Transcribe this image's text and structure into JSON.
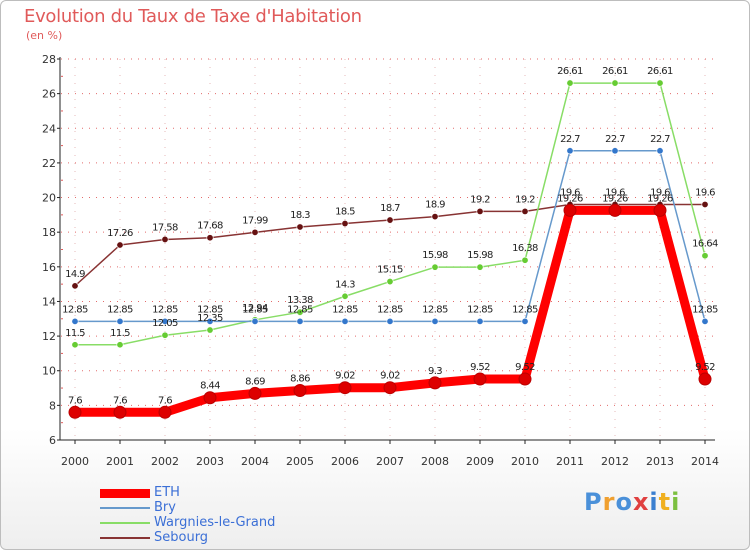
{
  "title": "Evolution du Taux de Taxe d'Habitation",
  "unit": "(en %)",
  "logo": "Proxiti",
  "colors": {
    "title": "#e05a5a",
    "axis": "#222222",
    "grid_dots": "#e05a5a",
    "legend_text": "#3b6fd6"
  },
  "chart_data": {
    "type": "line",
    "title": "Evolution du Taux de Taxe d'Habitation",
    "ylabel": "(en %)",
    "xlabel": "",
    "ylim": [
      6,
      28
    ],
    "yticks": [
      6,
      8,
      10,
      12,
      14,
      16,
      18,
      20,
      22,
      24,
      26,
      28
    ],
    "x": [
      "2000",
      "2001",
      "2002",
      "2003",
      "2004",
      "2005",
      "2006",
      "2007",
      "2008",
      "2009",
      "2010",
      "2011",
      "2012",
      "2013",
      "2014"
    ],
    "legend_position": "bottom-left",
    "series": [
      {
        "name": "ETH",
        "color": "#ff0000",
        "point_color": "#dd0000",
        "line_width": "heavy",
        "values": [
          7.6,
          7.6,
          7.6,
          8.44,
          8.69,
          8.86,
          9.02,
          9.02,
          9.3,
          9.52,
          9.52,
          19.26,
          19.26,
          19.26,
          9.52
        ],
        "labels": [
          "7.6",
          "7.6",
          "7.6",
          "8.44",
          "8.69",
          "8.86",
          "9.02",
          "9.02",
          "9.3",
          "9.52",
          "9.52",
          "19.26",
          "19.26",
          "19.26",
          "9.52"
        ]
      },
      {
        "name": "Bry",
        "color": "#6699cc",
        "point_color": "#3377cc",
        "line_width": "thin",
        "values": [
          12.85,
          12.85,
          12.85,
          12.85,
          12.85,
          12.85,
          12.85,
          12.85,
          12.85,
          12.85,
          12.85,
          22.7,
          22.7,
          22.7,
          12.85
        ],
        "labels": [
          "12.85",
          "12.85",
          "12.85",
          "12.85",
          "12.85",
          "12.85",
          "12.85",
          "12.85",
          "12.85",
          "12.85",
          "12.85",
          "22.7",
          "22.7",
          "22.7",
          "12.85"
        ]
      },
      {
        "name": "Wargnies-le-Grand",
        "color": "#88dd66",
        "point_color": "#66cc33",
        "line_width": "thin",
        "values": [
          11.5,
          11.5,
          12.05,
          12.35,
          12.94,
          13.38,
          14.3,
          15.15,
          15.98,
          15.98,
          16.38,
          26.61,
          26.61,
          26.61,
          16.64
        ],
        "labels": [
          "11.5",
          "11.5",
          "12.05",
          "12.35",
          "12.94",
          "13.38",
          "14.3",
          "15.15",
          "15.98",
          "15.98",
          "16.38",
          "26.61",
          "26.61",
          "26.61",
          "16.64"
        ]
      },
      {
        "name": "Sebourg",
        "color": "#883333",
        "point_color": "#661111",
        "line_width": "thin",
        "values": [
          14.9,
          17.26,
          17.58,
          17.68,
          17.99,
          18.3,
          18.5,
          18.7,
          18.9,
          19.2,
          19.2,
          19.6,
          19.6,
          19.6,
          19.6
        ],
        "labels": [
          "14.9",
          "17.26",
          "17.58",
          "17.68",
          "17.99",
          "18.3",
          "18.5",
          "18.7",
          "18.9",
          "19.2",
          "19.2",
          "19.6",
          "19.6",
          "19.6",
          "19.6"
        ]
      }
    ]
  }
}
